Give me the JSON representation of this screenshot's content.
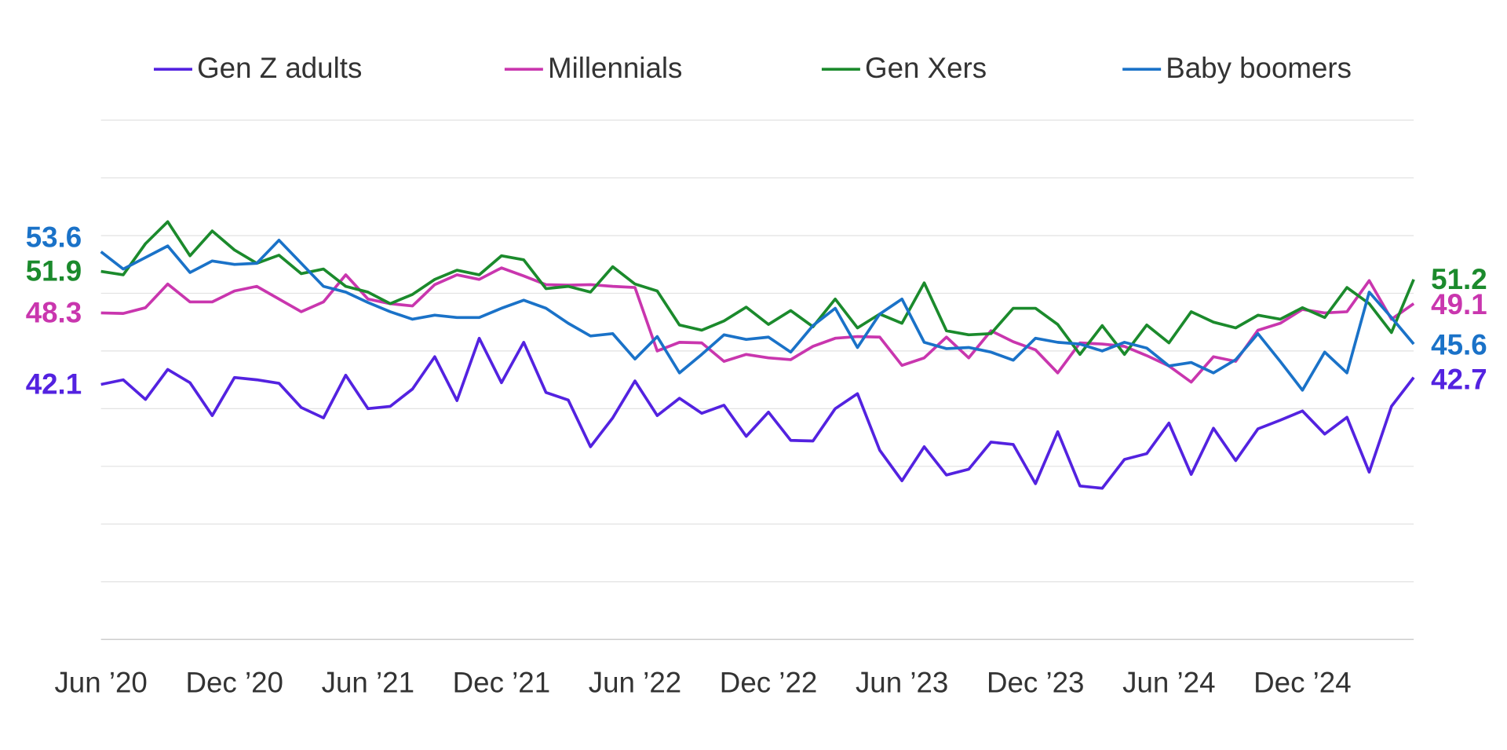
{
  "chart_data": {
    "type": "line",
    "categories": [
      "Jun ’20",
      null,
      null,
      null,
      null,
      null,
      "Dec ’20",
      null,
      null,
      null,
      null,
      null,
      "Jun ’21",
      null,
      null,
      null,
      null,
      null,
      "Dec ’21",
      null,
      null,
      null,
      null,
      null,
      "Jun ’22",
      null,
      null,
      null,
      null,
      null,
      "Dec ’22",
      null,
      null,
      null,
      null,
      null,
      "Jun ’23",
      null,
      null,
      null,
      null,
      null,
      "Dec ’23",
      null,
      null,
      null,
      null,
      null,
      "Jun ’24",
      null,
      null,
      null,
      null,
      null,
      "Dec ’24",
      null,
      null,
      null,
      null,
      null
    ],
    "series": [
      {
        "name": "Gen Z adults",
        "color": "#5322e0",
        "values": [
          42.1,
          42.5,
          40.8,
          43.4,
          42.25,
          39.4,
          42.7,
          42.5,
          42.2,
          40.1,
          39.2,
          42.9,
          40.0,
          40.2,
          41.7,
          44.5,
          40.7,
          46.1,
          42.25,
          45.75,
          41.4,
          40.75,
          36.7,
          39.2,
          42.4,
          39.4,
          40.9,
          39.6,
          40.3,
          37.6,
          39.7,
          37.25,
          37.2,
          40.0,
          41.3,
          36.4,
          33.75,
          36.7,
          34.25,
          34.75,
          37.1,
          36.9,
          33.5,
          38.0,
          33.3,
          33.1,
          35.6,
          36.1,
          38.75,
          34.3,
          38.3,
          35.5,
          38.25,
          39.0,
          39.8,
          37.8,
          39.25,
          34.5,
          40.2,
          42.7
        ]
      },
      {
        "name": "Millennials",
        "color": "#c936ae",
        "values": [
          48.3,
          48.25,
          48.75,
          50.8,
          49.25,
          49.25,
          50.2,
          50.6,
          49.5,
          48.4,
          49.25,
          51.6,
          49.5,
          49.1,
          48.9,
          50.75,
          51.6,
          51.2,
          52.2,
          51.5,
          50.75,
          50.7,
          50.75,
          50.6,
          50.5,
          45.0,
          45.75,
          45.7,
          44.1,
          44.7,
          44.4,
          44.25,
          45.4,
          46.1,
          46.25,
          46.2,
          43.75,
          44.4,
          46.2,
          44.4,
          46.75,
          45.8,
          45.1,
          43.1,
          45.7,
          45.6,
          45.4,
          44.6,
          43.7,
          42.3,
          44.5,
          44.1,
          46.8,
          47.4,
          48.6,
          48.3,
          48.4,
          51.1,
          47.75,
          49.1
        ]
      },
      {
        "name": "Gen Xers",
        "color": "#1b8a2c",
        "values": [
          51.9,
          51.6,
          54.3,
          56.2,
          53.25,
          55.4,
          53.75,
          52.6,
          53.3,
          51.7,
          52.1,
          50.6,
          50.1,
          49.1,
          49.9,
          51.2,
          52.0,
          51.6,
          53.25,
          52.9,
          50.4,
          50.6,
          50.1,
          52.3,
          50.8,
          50.2,
          47.25,
          46.8,
          47.6,
          48.8,
          47.3,
          48.5,
          47.1,
          49.5,
          47.0,
          48.2,
          47.4,
          50.9,
          46.75,
          46.4,
          46.5,
          48.7,
          48.7,
          47.3,
          44.7,
          47.2,
          44.7,
          47.25,
          45.7,
          48.4,
          47.5,
          47.0,
          48.1,
          47.75,
          48.75,
          47.9,
          50.5,
          49.1,
          46.6,
          51.2
        ]
      },
      {
        "name": "Baby boomers",
        "color": "#1a72c8",
        "values": [
          53.6,
          52.1,
          53.1,
          54.1,
          51.8,
          52.8,
          52.5,
          52.6,
          54.6,
          52.6,
          50.6,
          50.1,
          49.2,
          48.4,
          47.75,
          48.1,
          47.9,
          47.9,
          48.7,
          49.4,
          48.7,
          47.4,
          46.3,
          46.5,
          44.3,
          46.25,
          43.1,
          44.7,
          46.4,
          46.0,
          46.2,
          44.9,
          47.2,
          48.7,
          45.3,
          48.2,
          49.5,
          45.75,
          45.2,
          45.3,
          44.9,
          44.2,
          46.1,
          45.75,
          45.6,
          45.0,
          45.75,
          45.25,
          43.7,
          44.0,
          43.1,
          44.25,
          46.5,
          44.1,
          41.6,
          44.9,
          43.1,
          50.1,
          47.9,
          45.6
        ]
      }
    ],
    "ylim": [
      20,
      65
    ],
    "yticks": [
      20,
      25,
      30,
      35,
      40,
      45,
      50,
      55,
      60,
      65
    ],
    "grid": true,
    "legend": "top"
  }
}
